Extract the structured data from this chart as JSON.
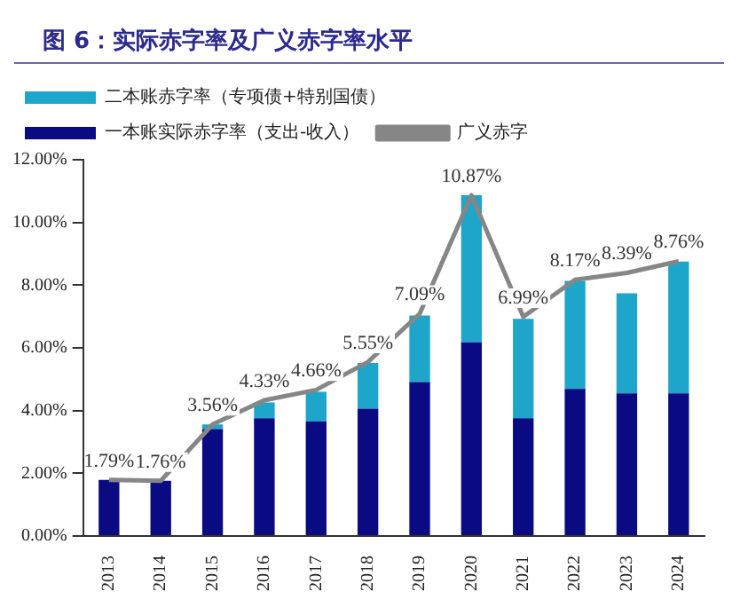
{
  "chart_data": {
    "type": "bar",
    "title": "图 6：实际赤字率及广义赤字率水平",
    "categories": [
      "2013",
      "2014",
      "2015",
      "2016",
      "2017",
      "2018",
      "2019",
      "2020",
      "2021",
      "2022",
      "2023",
      "2024"
    ],
    "stacked": true,
    "legend": "top left",
    "grid": false,
    "ylim": [
      0,
      12
    ],
    "yticks": [
      {
        "value": 0,
        "label": "0.00%"
      },
      {
        "value": 2,
        "label": "2.00%"
      },
      {
        "value": 4,
        "label": "4.00%"
      },
      {
        "value": 6,
        "label": "6.00%"
      },
      {
        "value": 8,
        "label": "8.00%"
      },
      {
        "value": 10,
        "label": "10.00%"
      },
      {
        "value": 12,
        "label": "12.00%"
      }
    ],
    "series": [
      {
        "name": "一本账实际赤字率（支出-收入）",
        "color": "#0a0a82",
        "values": [
          1.79,
          1.76,
          3.41,
          3.76,
          3.65,
          4.06,
          4.91,
          6.18,
          3.76,
          4.69,
          4.55,
          4.55
        ]
      },
      {
        "name": "二本账赤字率（专项债+特别国债）",
        "color": "#1ea6ca",
        "values": [
          0,
          0,
          0.15,
          0.5,
          0.95,
          1.46,
          2.12,
          4.69,
          3.17,
          3.45,
          3.19,
          4.2
        ]
      },
      {
        "name": "广义赤字",
        "type": "line",
        "color": "#868686",
        "marker": "none",
        "values": [
          1.79,
          1.76,
          3.56,
          4.33,
          4.66,
          5.55,
          7.09,
          10.87,
          6.99,
          8.17,
          8.39,
          8.76
        ],
        "value_labels": [
          "1.79%",
          "1.76%",
          "3.56%",
          "4.33%",
          "4.66%",
          "5.55%",
          "7.09%",
          "10.87%",
          "6.99%",
          "8.17%",
          "8.39%",
          "8.76%"
        ]
      }
    ]
  }
}
